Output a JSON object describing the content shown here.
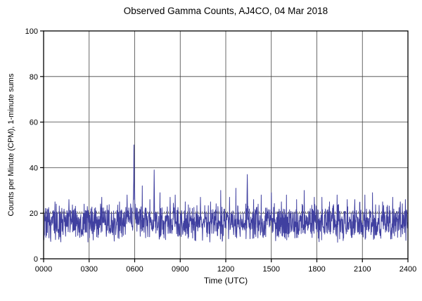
{
  "chart_data": {
    "type": "line",
    "title": "Observed Gamma Counts, AJ4CO, 04 Mar 2018",
    "xlabel": "Time (UTC)",
    "ylabel": "Counts per Minute (CPM), 1-minute sums",
    "xlim": [
      0,
      1440
    ],
    "ylim": [
      0,
      100
    ],
    "xticks": [
      0,
      180,
      360,
      540,
      720,
      900,
      1080,
      1260,
      1440
    ],
    "xtick_labels": [
      "0000",
      "0300",
      "0600",
      "0900",
      "1200",
      "1500",
      "1800",
      "2100",
      "2400"
    ],
    "yticks": [
      0,
      20,
      40,
      60,
      80,
      100
    ],
    "ytick_labels": [
      "0",
      "20",
      "40",
      "60",
      "80",
      "100"
    ],
    "grid": true,
    "grid_color": "#444444",
    "line_color": "#4040A0",
    "background": "#ffffff",
    "reference_line": {
      "y": 20.5,
      "style": "dotted",
      "color": "#000000"
    },
    "baseline": {
      "mean": 16,
      "spread": 9,
      "min": 6
    },
    "minutes_total": 1440,
    "seed": 20180304,
    "spikes": [
      [
        45,
        25
      ],
      [
        100,
        26
      ],
      [
        160,
        24
      ],
      [
        230,
        27
      ],
      [
        300,
        25
      ],
      [
        330,
        28
      ],
      [
        355,
        28
      ],
      [
        356,
        34
      ],
      [
        357,
        50
      ],
      [
        358,
        41
      ],
      [
        359,
        26
      ],
      [
        360,
        30
      ],
      [
        362,
        24
      ],
      [
        390,
        32
      ],
      [
        420,
        26
      ],
      [
        436,
        26
      ],
      [
        437,
        39
      ],
      [
        438,
        27
      ],
      [
        460,
        29
      ],
      [
        500,
        27
      ],
      [
        520,
        28
      ],
      [
        560,
        25
      ],
      [
        620,
        27
      ],
      [
        660,
        25
      ],
      [
        700,
        30
      ],
      [
        735,
        27
      ],
      [
        760,
        31
      ],
      [
        804,
        28
      ],
      [
        805,
        37
      ],
      [
        806,
        30
      ],
      [
        830,
        26
      ],
      [
        860,
        28
      ],
      [
        900,
        29
      ],
      [
        940,
        25
      ],
      [
        960,
        28
      ],
      [
        1000,
        26
      ],
      [
        1030,
        30
      ],
      [
        1070,
        27
      ],
      [
        1100,
        27
      ],
      [
        1130,
        25
      ],
      [
        1160,
        28
      ],
      [
        1200,
        26
      ],
      [
        1230,
        26
      ],
      [
        1270,
        28
      ],
      [
        1300,
        29
      ],
      [
        1340,
        25
      ],
      [
        1380,
        27
      ],
      [
        1410,
        25
      ],
      [
        1430,
        26
      ]
    ]
  }
}
